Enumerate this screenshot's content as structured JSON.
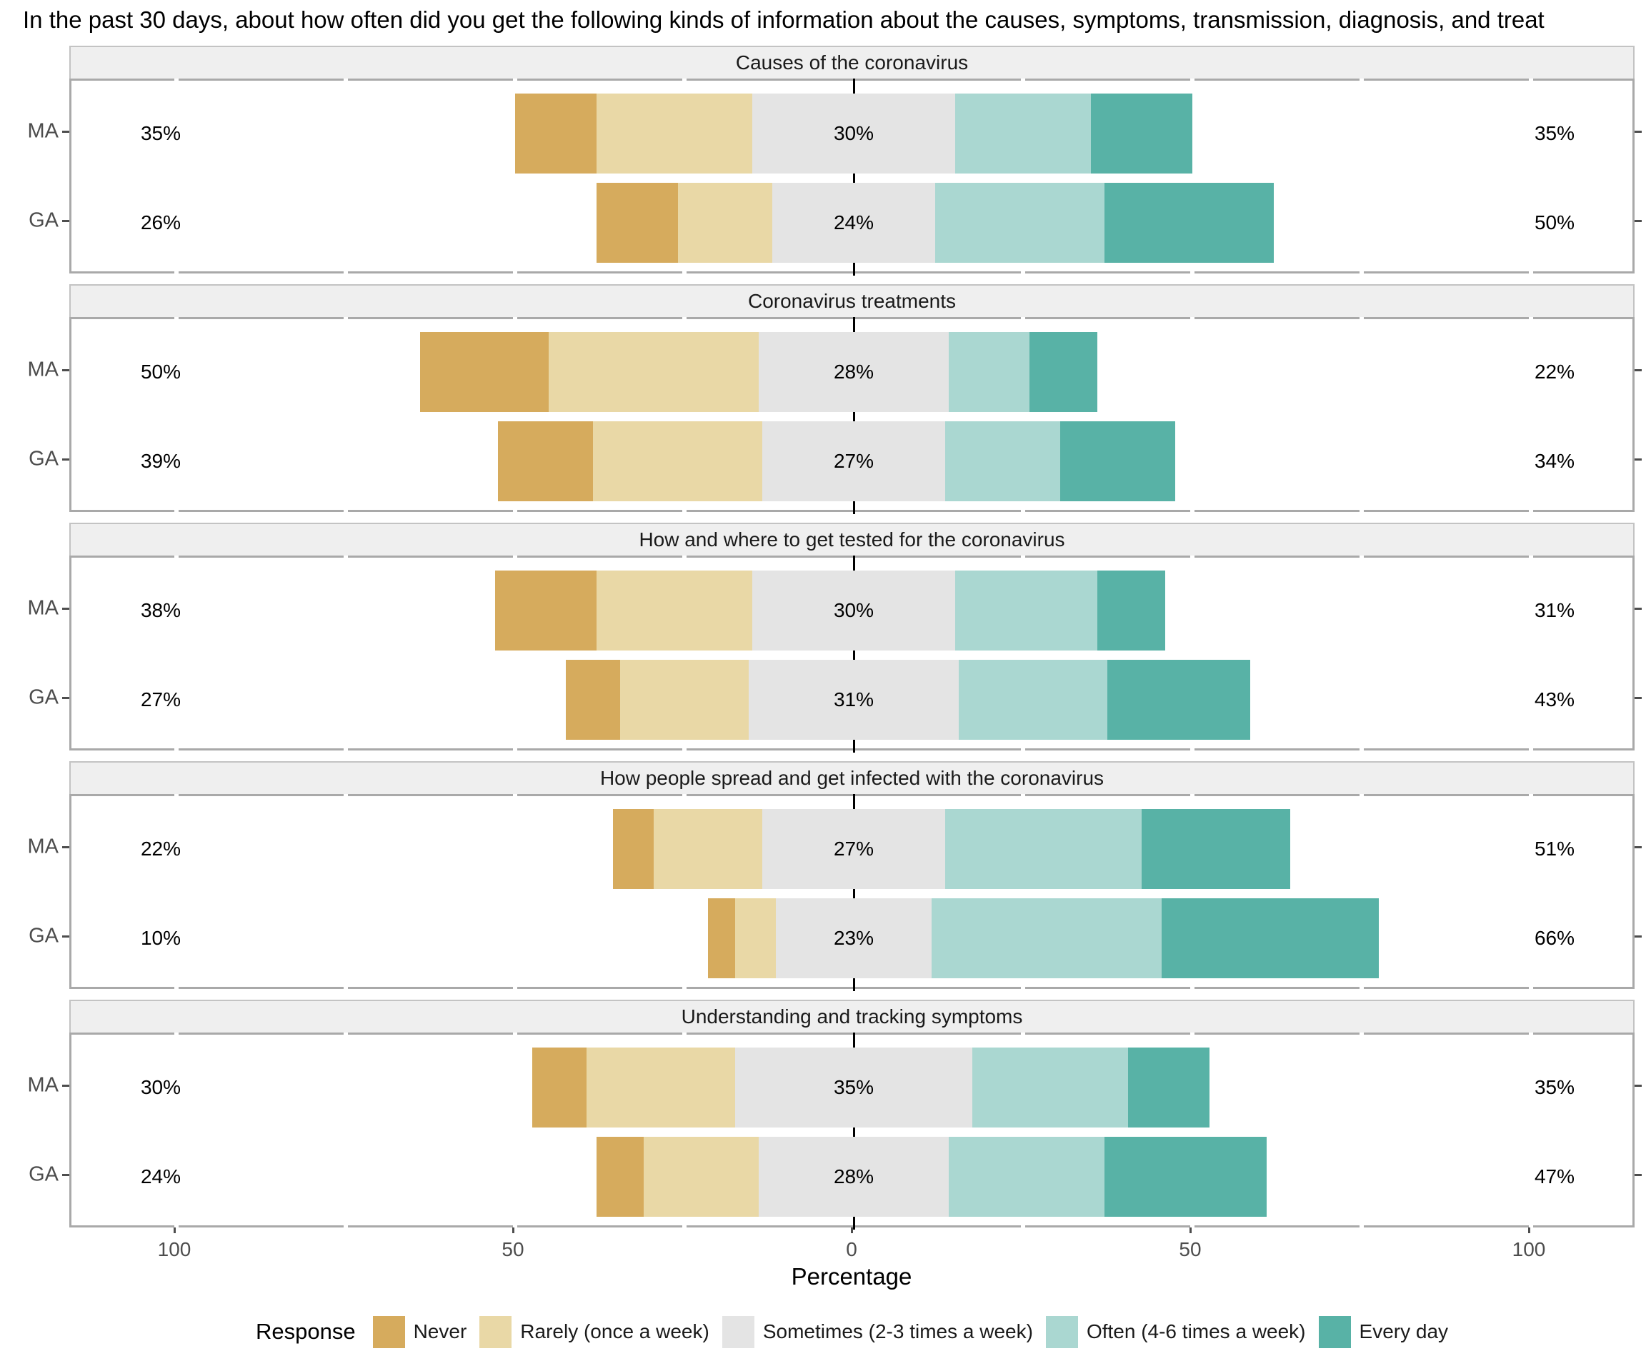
{
  "chart_data": {
    "type": "bar",
    "variant": "diverging_stacked_likert",
    "title": "In the past 30 days, about how often did you get the following kinds of information about the causes, symptoms, transmission, diagnosis, and treat",
    "xlabel": "Percentage",
    "x_axis_tick_labels": [
      "100",
      "50",
      "0",
      "50",
      "100"
    ],
    "x_axis_tick_values": [
      -100,
      -50,
      0,
      50,
      100
    ],
    "grid": false,
    "legend": {
      "title": "Response",
      "position": "bottom",
      "entries": [
        "Never",
        "Rarely (once a week)",
        "Sometimes (2-3 times a week)",
        "Often (4-6 times a week)",
        "Every day"
      ]
    },
    "colors": {
      "never": "#d6ab5d",
      "rarely": "#e9d8a6",
      "sometimes": "#e4e4e4",
      "often": "#aad7d1",
      "every_day": "#58b2a6"
    },
    "panel_colors": {
      "strip_background": "#efefef",
      "panel_border": "#a9a9a9",
      "axis_text": "#4d4d4d",
      "zero_line": "#000000"
    },
    "panels": [
      {
        "title": "Causes of the coronavirus",
        "rows": [
          {
            "group": "MA",
            "left_label": "35%",
            "center_label": "30%",
            "right_label": "35%",
            "segments": [
              12,
              23,
              30,
              20,
              15
            ]
          },
          {
            "group": "GA",
            "left_label": "26%",
            "center_label": "24%",
            "right_label": "50%",
            "segments": [
              12,
              14,
              24,
              25,
              25
            ]
          }
        ]
      },
      {
        "title": "Coronavirus treatments",
        "rows": [
          {
            "group": "MA",
            "left_label": "50%",
            "center_label": "28%",
            "right_label": "22%",
            "segments": [
              19,
              31,
              28,
              12,
              10
            ]
          },
          {
            "group": "GA",
            "left_label": "39%",
            "center_label": "27%",
            "right_label": "34%",
            "segments": [
              14,
              25,
              27,
              17,
              17
            ]
          }
        ]
      },
      {
        "title": "How and where to get tested for the coronavirus",
        "rows": [
          {
            "group": "MA",
            "left_label": "38%",
            "center_label": "30%",
            "right_label": "31%",
            "segments": [
              15,
              23,
              30,
              21,
              10
            ]
          },
          {
            "group": "GA",
            "left_label": "27%",
            "center_label": "31%",
            "right_label": "43%",
            "segments": [
              8,
              19,
              31,
              22,
              21
            ]
          }
        ]
      },
      {
        "title": "How people spread and get infected with the coronavirus",
        "rows": [
          {
            "group": "MA",
            "left_label": "22%",
            "center_label": "27%",
            "right_label": "51%",
            "segments": [
              6,
              16,
              27,
              29,
              22
            ]
          },
          {
            "group": "GA",
            "left_label": "10%",
            "center_label": "23%",
            "right_label": "66%",
            "segments": [
              4,
              6,
              23,
              34,
              32
            ]
          }
        ]
      },
      {
        "title": "Understanding and tracking symptoms",
        "rows": [
          {
            "group": "MA",
            "left_label": "30%",
            "center_label": "35%",
            "right_label": "35%",
            "segments": [
              8,
              22,
              35,
              23,
              12
            ]
          },
          {
            "group": "GA",
            "left_label": "24%",
            "center_label": "28%",
            "right_label": "47%",
            "segments": [
              7,
              17,
              28,
              23,
              24
            ]
          }
        ]
      }
    ]
  }
}
